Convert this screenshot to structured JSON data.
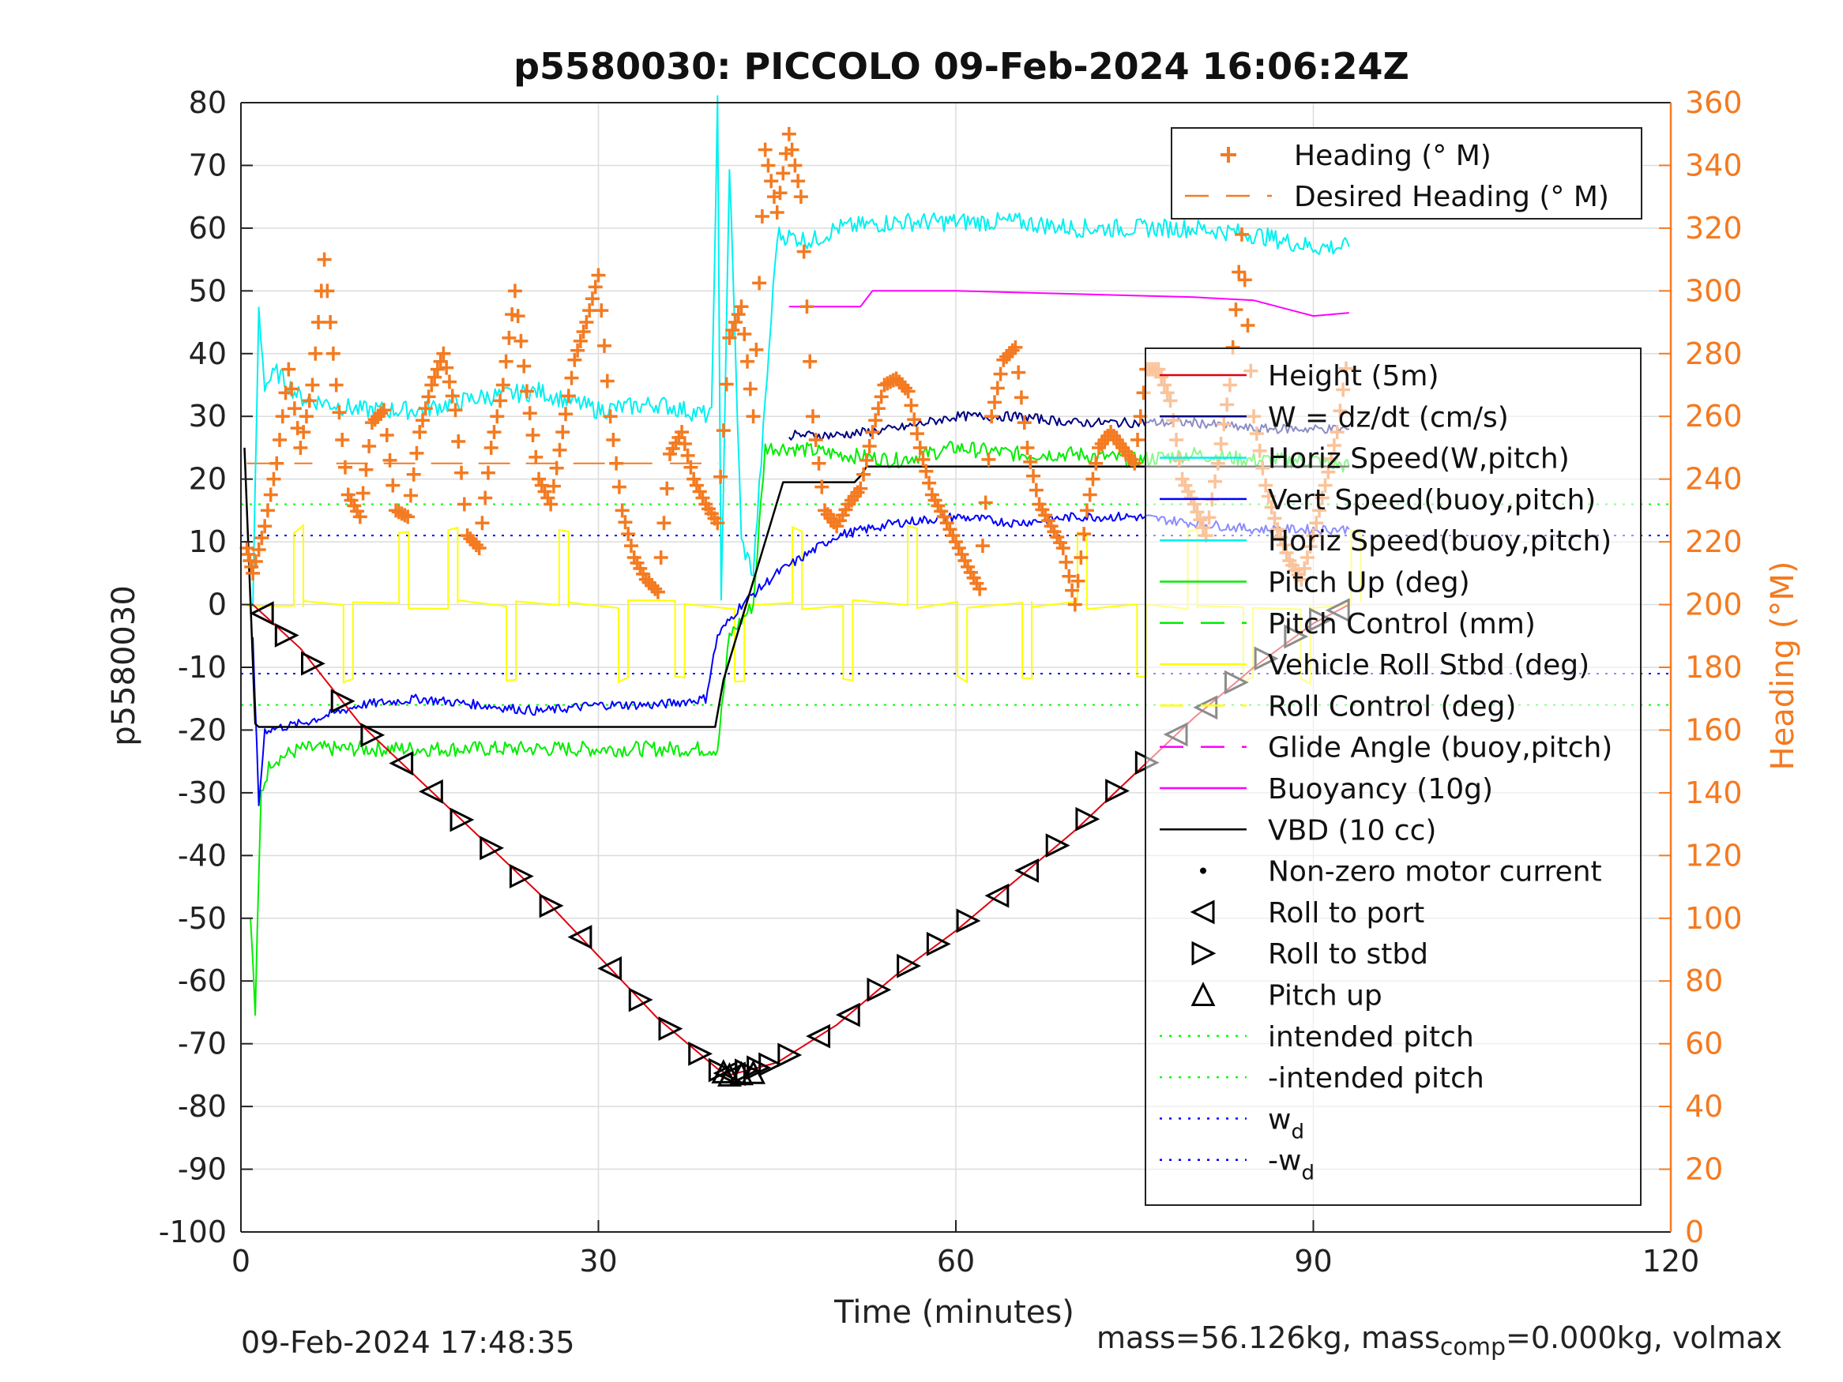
{
  "chart_data": {
    "type": "line",
    "title": "p5580030: PICCOLO 09-Feb-2024 16:06:24Z",
    "xlabel": "Time (minutes)",
    "ylabel": "p5580030",
    "y2label": "Heading (°M)",
    "xlim": [
      0,
      120
    ],
    "ylim": [
      -100,
      80
    ],
    "y2lim": [
      0,
      360
    ],
    "xticks": [
      "0",
      "30",
      "60",
      "90",
      "120"
    ],
    "yticks": [
      "80",
      "70",
      "60",
      "50",
      "40",
      "30",
      "20",
      "10",
      "0",
      "-10",
      "-20",
      "-30",
      "-40",
      "-50",
      "-60",
      "-70",
      "-80",
      "-90",
      "-100"
    ],
    "y2ticks": [
      "360",
      "340",
      "320",
      "300",
      "280",
      "260",
      "240",
      "220",
      "200",
      "180",
      "160",
      "140",
      "120",
      "100",
      "80",
      "60",
      "40",
      "20",
      "0"
    ],
    "grid": true,
    "colors": {
      "heading": "#f47a20",
      "height": "#e0000f",
      "w": "#000080",
      "horz_speed_w": "#00e000",
      "vert_speed_buoy": "#0000ff",
      "pitch_up": "#00ee00",
      "roll": "#ffff00",
      "buoyancy": "#ff00ff",
      "vbd": "#000000",
      "intended_pitch": "#00ff00",
      "wd": "#0000ff",
      "cyan": "#00f0f0"
    },
    "legend_top": [
      {
        "label": "Heading (° M)",
        "style": "plus",
        "color": "#f47a20"
      },
      {
        "label": "Desired Heading (° M)",
        "style": "dash",
        "color": "#f47a20"
      }
    ],
    "legend_main": [
      {
        "label": "Height (5m)",
        "style": "line",
        "color": "#e0000f"
      },
      {
        "label": "W = dz/dt (cm/s)",
        "style": "line",
        "color": "#000080"
      },
      {
        "label": "Horiz Speed(W,pitch)",
        "style": "line",
        "color": "#00f0f0"
      },
      {
        "label": "Vert Speed(buoy,pitch)",
        "style": "line",
        "color": "#0000ff"
      },
      {
        "label": "Horiz Speed(buoy,pitch)",
        "style": "line",
        "color": "#00f0f0"
      },
      {
        "label": "Pitch Up (deg)",
        "style": "line",
        "color": "#00ee00"
      },
      {
        "label": "Pitch Control (mm)",
        "style": "dash",
        "color": "#00ee00"
      },
      {
        "label": "Vehicle Roll Stbd (deg)",
        "style": "line",
        "color": "#ffff00"
      },
      {
        "label": "Roll Control (deg)",
        "style": "dash",
        "color": "#ffff00"
      },
      {
        "label": "Glide Angle (buoy,pitch)",
        "style": "dash",
        "color": "#ff00ff"
      },
      {
        "label": "Buoyancy (10g)",
        "style": "line",
        "color": "#ff00ff"
      },
      {
        "label": "VBD (10 cc)",
        "style": "line",
        "color": "#000000"
      },
      {
        "label": "Non-zero motor current",
        "style": "dot",
        "color": "#000000"
      },
      {
        "label": "Roll to port",
        "style": "tri-left",
        "color": "#000000"
      },
      {
        "label": "Roll to stbd",
        "style": "tri-right",
        "color": "#000000"
      },
      {
        "label": "Pitch up",
        "style": "tri-up",
        "color": "#000000"
      },
      {
        "label": "intended pitch",
        "style": "dot-line",
        "color": "#00ff00"
      },
      {
        "label": "-intended pitch",
        "style": "dot-line",
        "color": "#00ff00"
      },
      {
        "label": "w",
        "sub": "d",
        "style": "dot-line",
        "color": "#0000ff"
      },
      {
        "label": "-w",
        "sub": "d",
        "style": "dot-line",
        "color": "#0000ff"
      }
    ],
    "series": [
      {
        "name": "Height (5m)",
        "x": [
          1,
          5,
          10,
          15,
          20,
          25,
          30,
          35,
          40,
          41,
          43,
          45,
          50,
          55,
          60,
          65,
          70,
          75,
          80,
          85,
          90,
          93
        ],
        "y": [
          0,
          -7,
          -19,
          -28,
          -37,
          -46,
          -56,
          -66,
          -74,
          -75,
          -74,
          -73,
          -67,
          -59,
          -52,
          -44,
          -36,
          -27,
          -18,
          -10,
          -3,
          0
        ]
      },
      {
        "name": "VBD (10 cc)",
        "x": [
          0.3,
          1.2,
          1.5,
          10,
          20,
          30,
          39.8,
          40.5,
          45.5,
          51.5,
          52,
          52.5,
          93
        ],
        "y": [
          25,
          -19,
          -19.5,
          -19.5,
          -19.5,
          -19.5,
          -19.5,
          -12,
          19.5,
          19.5,
          20.5,
          22,
          22
        ]
      },
      {
        "name": "Buoyancy (10g)",
        "x": [
          46,
          52,
          53,
          60,
          70,
          80,
          85,
          88,
          90,
          93
        ],
        "y": [
          47.5,
          47.5,
          50,
          50,
          49.5,
          49,
          48.5,
          47,
          46,
          46.5
        ]
      },
      {
        "name": "Vert Speed(buoy,pitch)",
        "x": [
          1,
          1.5,
          2,
          5,
          10,
          15,
          20,
          25,
          30,
          35,
          39,
          40,
          42,
          45,
          50,
          55,
          60,
          65,
          70,
          75,
          80,
          85,
          90,
          93
        ],
        "y": [
          -5,
          -32,
          -20,
          -19,
          -16,
          -15,
          -16,
          -17,
          -16,
          -16,
          -15,
          -5,
          0,
          5,
          11,
          13,
          14,
          13,
          14,
          14,
          13,
          12,
          12,
          12
        ]
      },
      {
        "name": "W = dz/dt (cm/s)",
        "x": [
          46,
          50,
          55,
          60,
          65,
          70,
          75,
          80,
          85,
          90,
          93
        ],
        "y": [
          27,
          27,
          28,
          30,
          30,
          29,
          29,
          29,
          28,
          28,
          28
        ]
      },
      {
        "name": "Pitch Up (deg)",
        "x": [
          0.8,
          1.2,
          1.7,
          2.5,
          5,
          10,
          15,
          20,
          25,
          30,
          35,
          40,
          41,
          43,
          44,
          46,
          50,
          55,
          60,
          65,
          70,
          75,
          80,
          85,
          90,
          93
        ],
        "y": [
          -50,
          -65,
          -30,
          -25,
          -23,
          -23,
          -23,
          -23,
          -23,
          -23,
          -23,
          -23,
          -5,
          0,
          25,
          25,
          24,
          23,
          25,
          24,
          24,
          23,
          24,
          23,
          23,
          22
        ]
      },
      {
        "name": "Horiz Speed(W,pitch)",
        "x": [
          1,
          1.5,
          2,
          3,
          5,
          10,
          15,
          20,
          25,
          30,
          35,
          39.5,
          40,
          40.3,
          41,
          42,
          43,
          45,
          48,
          50,
          55,
          60,
          65,
          70,
          75,
          80,
          85,
          90,
          93
        ],
        "y": [
          0,
          47,
          35,
          37,
          33,
          31,
          31,
          33,
          34,
          31,
          32,
          30,
          80,
          0,
          70,
          10,
          5,
          59,
          58,
          60,
          61,
          61,
          61,
          60,
          60,
          60,
          59,
          57,
          57
        ]
      },
      {
        "name": "Heading (° M)",
        "x": [
          0.5,
          1,
          2,
          3,
          4,
          5,
          6,
          7,
          8,
          9,
          10,
          11,
          12,
          13,
          14,
          15,
          16,
          17,
          18,
          19,
          20,
          21,
          22,
          23,
          24,
          25,
          26,
          27,
          28,
          29,
          30,
          31,
          32,
          33,
          34,
          35,
          36,
          37,
          38,
          39,
          40,
          41,
          42,
          43,
          44,
          45,
          46,
          47,
          48,
          49,
          50,
          51,
          52,
          53,
          54,
          55,
          56,
          57,
          58,
          59,
          60,
          61,
          62,
          63,
          64,
          65,
          66,
          67,
          68,
          69,
          70,
          71,
          72,
          73,
          74,
          75,
          76,
          77,
          78,
          79,
          80,
          81,
          82,
          83,
          84,
          85,
          86,
          87,
          88,
          89,
          90,
          91,
          92,
          93
        ],
        "y": [
          218,
          210,
          225,
          245,
          275,
          250,
          270,
          310,
          270,
          235,
          228,
          258,
          262,
          230,
          228,
          255,
          270,
          280,
          262,
          222,
          218,
          250,
          270,
          300,
          268,
          240,
          232,
          255,
          278,
          290,
          305,
          260,
          230,
          215,
          208,
          204,
          248,
          255,
          240,
          232,
          226,
          285,
          295,
          260,
          345,
          325,
          350,
          330,
          260,
          230,
          225,
          232,
          237,
          255,
          270,
          272,
          268,
          250,
          235,
          228,
          220,
          212,
          205,
          260,
          278,
          282,
          250,
          232,
          225,
          218,
          200,
          230,
          250,
          255,
          250,
          245,
          275,
          275,
          265,
          240,
          232,
          222,
          245,
          270,
          318,
          260,
          238,
          224,
          214,
          208,
          222,
          238,
          255,
          282
        ]
      }
    ],
    "desired_heading": [
      {
        "x": [
          0.5,
          6
        ],
        "y": 245
      },
      {
        "x": [
          8,
          35
        ],
        "y": 245
      },
      {
        "x": [
          36,
          40
        ],
        "y": 245
      }
    ],
    "intended_pitch": 16,
    "wd": 11
  },
  "footer": {
    "timestamp": "09-Feb-2024 17:48:35",
    "mass_text": "mass=56.126kg, mass",
    "mass_sub": "comp",
    "mass_tail": "=0.000kg, volmax"
  }
}
